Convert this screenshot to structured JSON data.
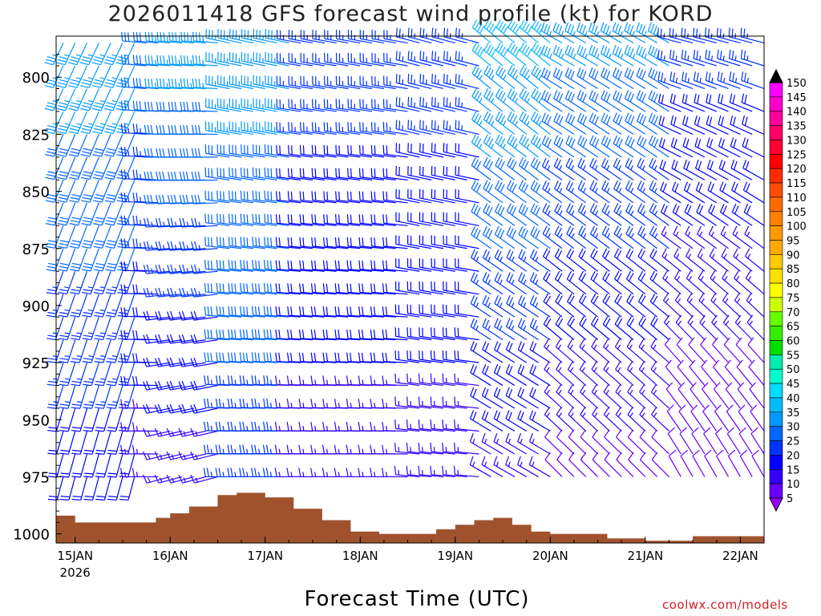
{
  "chart_data": {
    "type": "wind-barb-profile",
    "title": "2026011418 GFS forecast wind profile (kt) for KORD",
    "xlabel": "Forecast Time (UTC)",
    "credit": "coolwx.com/models",
    "y_axis": {
      "quantity": "pressure (hPa)",
      "range": [
        1004,
        782
      ],
      "ticks": [
        "800",
        "825",
        "850",
        "875",
        "900",
        "925",
        "950",
        "975",
        "1000"
      ]
    },
    "x_axis": {
      "range_days": [
        -0.2,
        7.25
      ],
      "ticks": [
        "15JAN",
        "16JAN",
        "17JAN",
        "18JAN",
        "19JAN",
        "20JAN",
        "21JAN",
        "22JAN"
      ],
      "year_label": "2026"
    },
    "colorbar": {
      "units": "kt",
      "labels": [
        "150",
        "145",
        "140",
        "135",
        "130",
        "125",
        "120",
        "115",
        "110",
        "105",
        "100",
        "95",
        "90",
        "85",
        "80",
        "75",
        "70",
        "65",
        "60",
        "55",
        "50",
        "45",
        "40",
        "35",
        "30",
        "25",
        "20",
        "15",
        "10",
        "5"
      ],
      "colors": [
        "#ff00ff",
        "#ff00cc",
        "#ff0099",
        "#ff0066",
        "#ff0033",
        "#ff0000",
        "#ff2a00",
        "#ff4d00",
        "#ff6a00",
        "#ff8000",
        "#ff9900",
        "#ffaa00",
        "#ffcc00",
        "#ffe000",
        "#ffff00",
        "#ccff00",
        "#66ff00",
        "#33ee00",
        "#00dd00",
        "#00eeaa",
        "#00ffcc",
        "#00ddff",
        "#00bbff",
        "#0099ff",
        "#0066ff",
        "#0033ff",
        "#0000ff",
        "#3300ff",
        "#6600ff",
        "#9900ff"
      ]
    },
    "terrain": {
      "color": "#a0522d",
      "days": [
        -0.2,
        0.0,
        0.3,
        0.6,
        0.85,
        1.0,
        1.2,
        1.5,
        1.7,
        2.0,
        2.3,
        2.6,
        2.9,
        3.2,
        3.5,
        3.8,
        4.0,
        4.2,
        4.4,
        4.6,
        4.8,
        5.0,
        5.3,
        5.6,
        6.0,
        6.3,
        6.5,
        6.7,
        7.0,
        7.25
      ],
      "pressure_hpa": [
        992,
        995,
        995,
        995,
        993,
        991,
        988,
        983,
        982,
        984,
        989,
        994,
        999,
        1000,
        1000,
        998,
        996,
        994,
        993,
        996,
        999,
        1000,
        1000,
        1002,
        1003,
        1003,
        1001,
        1001,
        1001,
        1000
      ]
    },
    "winds": {
      "description": "barb grid: columns every 3 h, rows = pressure levels; direction = degrees wind comes from, speed in kt",
      "levels_hpa": [
        975,
        965,
        955,
        945,
        935,
        925,
        915,
        905,
        895,
        885,
        875,
        865,
        855,
        845,
        835,
        825,
        815,
        805,
        795,
        785
      ],
      "phases": [
        {
          "end_day": 0.65,
          "dir_low": 195,
          "dir_high": 205,
          "spd_low": 20,
          "spd_high": 35
        },
        {
          "end_day": 0.9,
          "dir_low": 270,
          "dir_high": 275,
          "spd_low": 15,
          "spd_high": 30
        },
        {
          "end_day": 1.55,
          "dir_low": 255,
          "dir_high": 275,
          "spd_low": 15,
          "spd_high": 35
        },
        {
          "end_day": 2.3,
          "dir_low": 270,
          "dir_high": 282,
          "spd_low": 25,
          "spd_high": 35
        },
        {
          "end_day": 3.5,
          "dir_low": 270,
          "dir_high": 280,
          "spd_low": 15,
          "spd_high": 25
        },
        {
          "end_day": 4.25,
          "dir_low": 275,
          "dir_high": 285,
          "spd_low": 15,
          "spd_high": 25
        },
        {
          "end_day": 5.05,
          "dir_low": 300,
          "dir_high": 310,
          "spd_low": 15,
          "spd_high": 40
        },
        {
          "end_day": 6.3,
          "dir_low": 315,
          "dir_high": 300,
          "spd_low": 10,
          "spd_high": 35
        },
        {
          "end_day": 7.25,
          "dir_low": 330,
          "dir_high": 285,
          "spd_low": 8,
          "spd_high": 25
        }
      ]
    }
  }
}
